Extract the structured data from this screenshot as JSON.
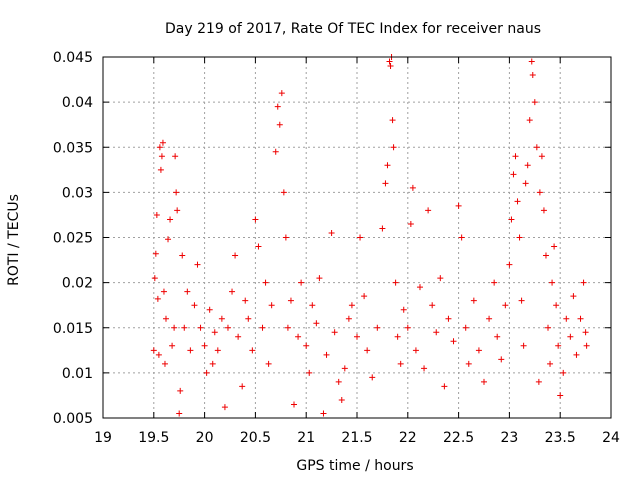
{
  "chart_data": {
    "type": "scatter",
    "title": "Day 219 of 2017, Rate Of TEC Index for receiver naus",
    "xlabel": "GPS time / hours",
    "ylabel": "ROTI / TECUs",
    "xlim": [
      19,
      24
    ],
    "ylim": [
      0.005,
      0.045
    ],
    "xticks": [
      19,
      19.5,
      20,
      20.5,
      21,
      21.5,
      22,
      22.5,
      23,
      23.5,
      24
    ],
    "xtick_labels": [
      "19",
      "19.5",
      "20",
      "20.5",
      "21",
      "21.5",
      "22",
      "22.5",
      "23",
      "23.5",
      "24"
    ],
    "yticks": [
      0.005,
      0.01,
      0.015,
      0.02,
      0.025,
      0.03,
      0.035,
      0.04,
      0.045
    ],
    "ytick_labels": [
      "0.005",
      "0.01",
      "0.015",
      "0.02",
      "0.025",
      "0.03",
      "0.035",
      "0.04",
      "0.045"
    ],
    "grid": true,
    "marker": "+",
    "series": [
      {
        "name": "ROTI",
        "color": "#ee0000",
        "points": [
          [
            19.5,
            0.0125
          ],
          [
            19.51,
            0.0205
          ],
          [
            19.52,
            0.0232
          ],
          [
            19.53,
            0.0275
          ],
          [
            19.54,
            0.0182
          ],
          [
            19.55,
            0.012
          ],
          [
            19.56,
            0.035
          ],
          [
            19.57,
            0.0325
          ],
          [
            19.58,
            0.034
          ],
          [
            19.59,
            0.0355
          ],
          [
            19.6,
            0.019
          ],
          [
            19.61,
            0.011
          ],
          [
            19.62,
            0.016
          ],
          [
            19.64,
            0.0248
          ],
          [
            19.66,
            0.027
          ],
          [
            19.68,
            0.013
          ],
          [
            19.7,
            0.015
          ],
          [
            19.71,
            0.034
          ],
          [
            19.72,
            0.03
          ],
          [
            19.73,
            0.028
          ],
          [
            19.75,
            0.0055
          ],
          [
            19.76,
            0.008
          ],
          [
            19.78,
            0.023
          ],
          [
            19.8,
            0.015
          ],
          [
            19.83,
            0.019
          ],
          [
            19.86,
            0.0125
          ],
          [
            19.9,
            0.0175
          ],
          [
            19.93,
            0.022
          ],
          [
            19.96,
            0.015
          ],
          [
            20.0,
            0.013
          ],
          [
            20.02,
            0.01
          ],
          [
            20.05,
            0.017
          ],
          [
            20.08,
            0.011
          ],
          [
            20.1,
            0.0145
          ],
          [
            20.13,
            0.0125
          ],
          [
            20.17,
            0.016
          ],
          [
            20.2,
            0.0062
          ],
          [
            20.23,
            0.015
          ],
          [
            20.27,
            0.019
          ],
          [
            20.3,
            0.023
          ],
          [
            20.33,
            0.014
          ],
          [
            20.37,
            0.0085
          ],
          [
            20.4,
            0.018
          ],
          [
            20.43,
            0.016
          ],
          [
            20.47,
            0.0125
          ],
          [
            20.5,
            0.027
          ],
          [
            20.53,
            0.024
          ],
          [
            20.57,
            0.015
          ],
          [
            20.6,
            0.02
          ],
          [
            20.63,
            0.011
          ],
          [
            20.66,
            0.0175
          ],
          [
            20.7,
            0.0345
          ],
          [
            20.72,
            0.0395
          ],
          [
            20.74,
            0.0375
          ],
          [
            20.76,
            0.041
          ],
          [
            20.78,
            0.03
          ],
          [
            20.8,
            0.025
          ],
          [
            20.82,
            0.015
          ],
          [
            20.85,
            0.018
          ],
          [
            20.88,
            0.0065
          ],
          [
            20.92,
            0.014
          ],
          [
            20.95,
            0.02
          ],
          [
            21.0,
            0.013
          ],
          [
            21.03,
            0.01
          ],
          [
            21.06,
            0.0175
          ],
          [
            21.1,
            0.0155
          ],
          [
            21.13,
            0.0205
          ],
          [
            21.17,
            0.0055
          ],
          [
            21.2,
            0.012
          ],
          [
            21.25,
            0.0255
          ],
          [
            21.28,
            0.0145
          ],
          [
            21.32,
            0.009
          ],
          [
            21.35,
            0.007
          ],
          [
            21.38,
            0.0105
          ],
          [
            21.42,
            0.016
          ],
          [
            21.45,
            0.0175
          ],
          [
            21.5,
            0.014
          ],
          [
            21.53,
            0.025
          ],
          [
            21.57,
            0.0185
          ],
          [
            21.6,
            0.0125
          ],
          [
            21.65,
            0.0095
          ],
          [
            21.7,
            0.015
          ],
          [
            21.75,
            0.026
          ],
          [
            21.78,
            0.031
          ],
          [
            21.8,
            0.033
          ],
          [
            21.82,
            0.0445
          ],
          [
            21.83,
            0.044
          ],
          [
            21.84,
            0.045
          ],
          [
            21.85,
            0.038
          ],
          [
            21.86,
            0.035
          ],
          [
            21.88,
            0.02
          ],
          [
            21.9,
            0.014
          ],
          [
            21.93,
            0.011
          ],
          [
            21.96,
            0.017
          ],
          [
            22.0,
            0.015
          ],
          [
            22.03,
            0.0265
          ],
          [
            22.05,
            0.0305
          ],
          [
            22.08,
            0.0125
          ],
          [
            22.12,
            0.0195
          ],
          [
            22.16,
            0.0105
          ],
          [
            22.2,
            0.028
          ],
          [
            22.24,
            0.0175
          ],
          [
            22.28,
            0.0145
          ],
          [
            22.32,
            0.0205
          ],
          [
            22.36,
            0.0085
          ],
          [
            22.4,
            0.016
          ],
          [
            22.45,
            0.0135
          ],
          [
            22.5,
            0.0285
          ],
          [
            22.53,
            0.025
          ],
          [
            22.57,
            0.015
          ],
          [
            22.6,
            0.011
          ],
          [
            22.65,
            0.018
          ],
          [
            22.7,
            0.0125
          ],
          [
            22.75,
            0.009
          ],
          [
            22.8,
            0.016
          ],
          [
            22.85,
            0.02
          ],
          [
            22.88,
            0.014
          ],
          [
            22.92,
            0.0115
          ],
          [
            22.96,
            0.0175
          ],
          [
            23.0,
            0.022
          ],
          [
            23.02,
            0.027
          ],
          [
            23.04,
            0.032
          ],
          [
            23.06,
            0.034
          ],
          [
            23.08,
            0.029
          ],
          [
            23.1,
            0.025
          ],
          [
            23.12,
            0.018
          ],
          [
            23.14,
            0.013
          ],
          [
            23.16,
            0.031
          ],
          [
            23.18,
            0.033
          ],
          [
            23.2,
            0.038
          ],
          [
            23.22,
            0.0445
          ],
          [
            23.23,
            0.043
          ],
          [
            23.25,
            0.04
          ],
          [
            23.27,
            0.035
          ],
          [
            23.29,
            0.009
          ],
          [
            23.3,
            0.03
          ],
          [
            23.32,
            0.034
          ],
          [
            23.34,
            0.028
          ],
          [
            23.36,
            0.023
          ],
          [
            23.38,
            0.015
          ],
          [
            23.4,
            0.011
          ],
          [
            23.42,
            0.02
          ],
          [
            23.44,
            0.024
          ],
          [
            23.46,
            0.0175
          ],
          [
            23.48,
            0.013
          ],
          [
            23.5,
            0.0075
          ],
          [
            23.53,
            0.01
          ],
          [
            23.56,
            0.016
          ],
          [
            23.6,
            0.014
          ],
          [
            23.63,
            0.0185
          ],
          [
            23.66,
            0.012
          ],
          [
            23.7,
            0.016
          ],
          [
            23.73,
            0.02
          ],
          [
            23.75,
            0.0145
          ],
          [
            23.76,
            0.013
          ]
        ]
      }
    ]
  }
}
